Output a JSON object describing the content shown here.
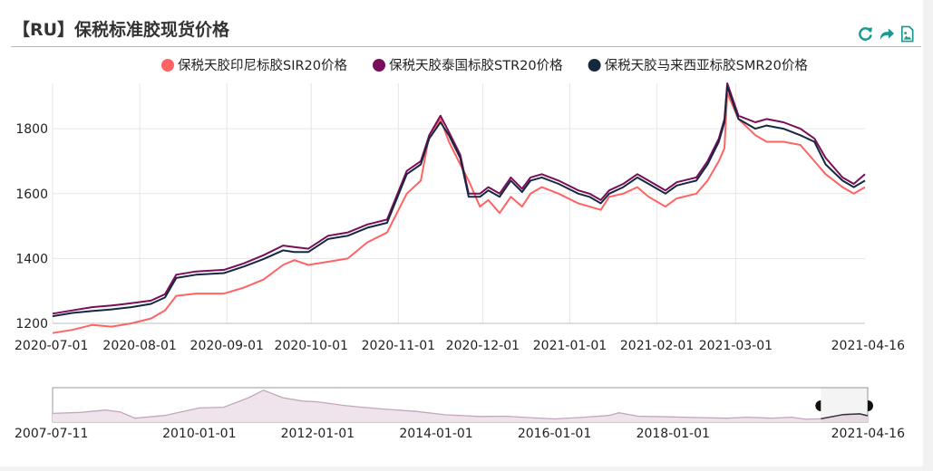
{
  "title": "【RU】保税标准胶现货价格",
  "toolbar": [
    {
      "name": "refresh-icon"
    },
    {
      "name": "share-icon"
    },
    {
      "name": "save-image-icon"
    }
  ],
  "colors": {
    "sir20": "#ff6363",
    "str20": "#7a0d5b",
    "smr20": "#16283f",
    "toolbar": "#1a9a8c",
    "grid": "#e6e6e6",
    "axis": "#bfbfbf",
    "overview_line": "#c4a6bd",
    "overview_recent": "#333333"
  },
  "chart_data": [
    {
      "type": "line",
      "title": "",
      "legend_position": "top",
      "grid": true,
      "xlim": [
        "2020-07-01",
        "2021-04-16"
      ],
      "ylim": [
        1200,
        1940
      ],
      "y_ticks": [
        1200,
        1400,
        1600,
        1800
      ],
      "x_tick_labels": [
        "2020-07-01",
        "2020-08-01",
        "2020-09-01",
        "2020-10-01",
        "2020-11-01",
        "2020-12-01",
        "2021-01-01",
        "2021-02-01",
        "2021-03-01",
        "2021-04-16"
      ],
      "series": [
        {
          "name": "保税天胶印尼标胶SIR20价格",
          "color_key": "sir20",
          "points": [
            [
              "2020-07-01",
              1170
            ],
            [
              "2020-07-08",
              1180
            ],
            [
              "2020-07-15",
              1195
            ],
            [
              "2020-07-22",
              1190
            ],
            [
              "2020-07-29",
              1200
            ],
            [
              "2020-08-05",
              1215
            ],
            [
              "2020-08-10",
              1240
            ],
            [
              "2020-08-14",
              1285
            ],
            [
              "2020-08-21",
              1292
            ],
            [
              "2020-08-31",
              1292
            ],
            [
              "2020-09-07",
              1310
            ],
            [
              "2020-09-14",
              1335
            ],
            [
              "2020-09-21",
              1380
            ],
            [
              "2020-09-25",
              1395
            ],
            [
              "2020-09-30",
              1380
            ],
            [
              "2020-10-07",
              1390
            ],
            [
              "2020-10-14",
              1400
            ],
            [
              "2020-10-21",
              1450
            ],
            [
              "2020-10-28",
              1480
            ],
            [
              "2020-11-04",
              1600
            ],
            [
              "2020-11-09",
              1640
            ],
            [
              "2020-11-12",
              1780
            ],
            [
              "2020-11-16",
              1830
            ],
            [
              "2020-11-19",
              1760
            ],
            [
              "2020-11-23",
              1690
            ],
            [
              "2020-11-26",
              1640
            ],
            [
              "2020-11-30",
              1560
            ],
            [
              "2020-12-03",
              1580
            ],
            [
              "2020-12-07",
              1540
            ],
            [
              "2020-12-11",
              1590
            ],
            [
              "2020-12-15",
              1560
            ],
            [
              "2020-12-18",
              1600
            ],
            [
              "2020-12-22",
              1620
            ],
            [
              "2020-12-28",
              1600
            ],
            [
              "2021-01-04",
              1570
            ],
            [
              "2021-01-08",
              1560
            ],
            [
              "2021-01-12",
              1550
            ],
            [
              "2021-01-15",
              1590
            ],
            [
              "2021-01-20",
              1600
            ],
            [
              "2021-01-25",
              1620
            ],
            [
              "2021-01-29",
              1590
            ],
            [
              "2021-02-04",
              1560
            ],
            [
              "2021-02-08",
              1585
            ],
            [
              "2021-02-15",
              1600
            ],
            [
              "2021-02-19",
              1640
            ],
            [
              "2021-02-23",
              1700
            ],
            [
              "2021-02-25",
              1740
            ],
            [
              "2021-02-26",
              1910
            ],
            [
              "2021-03-02",
              1830
            ],
            [
              "2021-03-08",
              1780
            ],
            [
              "2021-03-12",
              1760
            ],
            [
              "2021-03-18",
              1760
            ],
            [
              "2021-03-24",
              1750
            ],
            [
              "2021-03-29",
              1700
            ],
            [
              "2021-04-02",
              1660
            ],
            [
              "2021-04-08",
              1620
            ],
            [
              "2021-04-12",
              1600
            ],
            [
              "2021-04-16",
              1620
            ]
          ]
        },
        {
          "name": "保税天胶泰国标胶STR20价格",
          "color_key": "str20",
          "points": [
            [
              "2020-07-01",
              1230
            ],
            [
              "2020-07-08",
              1240
            ],
            [
              "2020-07-15",
              1250
            ],
            [
              "2020-07-22",
              1255
            ],
            [
              "2020-07-29",
              1262
            ],
            [
              "2020-08-05",
              1270
            ],
            [
              "2020-08-10",
              1290
            ],
            [
              "2020-08-14",
              1350
            ],
            [
              "2020-08-21",
              1360
            ],
            [
              "2020-08-31",
              1365
            ],
            [
              "2020-09-07",
              1385
            ],
            [
              "2020-09-14",
              1410
            ],
            [
              "2020-09-21",
              1440
            ],
            [
              "2020-09-25",
              1435
            ],
            [
              "2020-09-30",
              1430
            ],
            [
              "2020-10-07",
              1470
            ],
            [
              "2020-10-14",
              1480
            ],
            [
              "2020-10-21",
              1505
            ],
            [
              "2020-10-28",
              1520
            ],
            [
              "2020-11-04",
              1670
            ],
            [
              "2020-11-09",
              1700
            ],
            [
              "2020-11-12",
              1780
            ],
            [
              "2020-11-16",
              1840
            ],
            [
              "2020-11-19",
              1790
            ],
            [
              "2020-11-23",
              1720
            ],
            [
              "2020-11-26",
              1600
            ],
            [
              "2020-11-30",
              1600
            ],
            [
              "2020-12-03",
              1620
            ],
            [
              "2020-12-07",
              1600
            ],
            [
              "2020-12-11",
              1650
            ],
            [
              "2020-12-15",
              1615
            ],
            [
              "2020-12-18",
              1650
            ],
            [
              "2020-12-22",
              1660
            ],
            [
              "2020-12-28",
              1640
            ],
            [
              "2021-01-04",
              1610
            ],
            [
              "2021-01-08",
              1600
            ],
            [
              "2021-01-12",
              1580
            ],
            [
              "2021-01-15",
              1610
            ],
            [
              "2021-01-20",
              1630
            ],
            [
              "2021-01-25",
              1660
            ],
            [
              "2021-01-29",
              1640
            ],
            [
              "2021-02-04",
              1610
            ],
            [
              "2021-02-08",
              1635
            ],
            [
              "2021-02-15",
              1650
            ],
            [
              "2021-02-19",
              1700
            ],
            [
              "2021-02-23",
              1770
            ],
            [
              "2021-02-25",
              1830
            ],
            [
              "2021-02-26",
              1940
            ],
            [
              "2021-03-02",
              1840
            ],
            [
              "2021-03-08",
              1820
            ],
            [
              "2021-03-12",
              1830
            ],
            [
              "2021-03-18",
              1820
            ],
            [
              "2021-03-24",
              1800
            ],
            [
              "2021-03-29",
              1770
            ],
            [
              "2021-04-02",
              1710
            ],
            [
              "2021-04-08",
              1650
            ],
            [
              "2021-04-12",
              1630
            ],
            [
              "2021-04-16",
              1660
            ]
          ]
        },
        {
          "name": "保税天胶马来西亚标胶SMR20价格",
          "color_key": "smr20",
          "points": [
            [
              "2020-07-01",
              1222
            ],
            [
              "2020-07-08",
              1232
            ],
            [
              "2020-07-15",
              1238
            ],
            [
              "2020-07-22",
              1243
            ],
            [
              "2020-07-29",
              1250
            ],
            [
              "2020-08-05",
              1260
            ],
            [
              "2020-08-10",
              1280
            ],
            [
              "2020-08-14",
              1340
            ],
            [
              "2020-08-21",
              1350
            ],
            [
              "2020-08-31",
              1355
            ],
            [
              "2020-09-07",
              1375
            ],
            [
              "2020-09-14",
              1398
            ],
            [
              "2020-09-21",
              1425
            ],
            [
              "2020-09-25",
              1420
            ],
            [
              "2020-09-30",
              1420
            ],
            [
              "2020-10-07",
              1460
            ],
            [
              "2020-10-14",
              1470
            ],
            [
              "2020-10-21",
              1495
            ],
            [
              "2020-10-28",
              1510
            ],
            [
              "2020-11-04",
              1660
            ],
            [
              "2020-11-09",
              1690
            ],
            [
              "2020-11-12",
              1770
            ],
            [
              "2020-11-16",
              1820
            ],
            [
              "2020-11-19",
              1780
            ],
            [
              "2020-11-23",
              1710
            ],
            [
              "2020-11-26",
              1590
            ],
            [
              "2020-11-30",
              1590
            ],
            [
              "2020-12-03",
              1610
            ],
            [
              "2020-12-07",
              1590
            ],
            [
              "2020-12-11",
              1640
            ],
            [
              "2020-12-15",
              1605
            ],
            [
              "2020-12-18",
              1640
            ],
            [
              "2020-12-22",
              1650
            ],
            [
              "2020-12-28",
              1630
            ],
            [
              "2021-01-04",
              1600
            ],
            [
              "2021-01-08",
              1590
            ],
            [
              "2021-01-12",
              1570
            ],
            [
              "2021-01-15",
              1600
            ],
            [
              "2021-01-20",
              1620
            ],
            [
              "2021-01-25",
              1650
            ],
            [
              "2021-01-29",
              1630
            ],
            [
              "2021-02-04",
              1600
            ],
            [
              "2021-02-08",
              1625
            ],
            [
              "2021-02-15",
              1640
            ],
            [
              "2021-02-19",
              1690
            ],
            [
              "2021-02-23",
              1760
            ],
            [
              "2021-02-25",
              1820
            ],
            [
              "2021-02-26",
              1930
            ],
            [
              "2021-03-02",
              1830
            ],
            [
              "2021-03-08",
              1800
            ],
            [
              "2021-03-12",
              1810
            ],
            [
              "2021-03-18",
              1800
            ],
            [
              "2021-03-24",
              1780
            ],
            [
              "2021-03-29",
              1760
            ],
            [
              "2021-04-02",
              1690
            ],
            [
              "2021-04-08",
              1640
            ],
            [
              "2021-04-12",
              1620
            ],
            [
              "2021-04-16",
              1640
            ]
          ]
        }
      ]
    },
    {
      "type": "area",
      "title": "",
      "grid": false,
      "xlim": [
        "2007-07-11",
        "2021-04-16"
      ],
      "x_tick_labels": [
        "2007-07-11",
        "2010-01-01",
        "2012-01-01",
        "2014-01-01",
        "2016-01-01",
        "2018-01-01",
        "2021-04-16"
      ],
      "selection_range": [
        "2020-07-01",
        "2021-04-16"
      ],
      "series": [
        {
          "color_key": "overview_line",
          "points": [
            [
              "2007-07-11",
              2000
            ],
            [
              "2008-01-01",
              2150
            ],
            [
              "2008-06-01",
              2500
            ],
            [
              "2008-09-01",
              2200
            ],
            [
              "2008-12-01",
              1300
            ],
            [
              "2009-06-01",
              1700
            ],
            [
              "2010-01-01",
              2800
            ],
            [
              "2010-06-01",
              2900
            ],
            [
              "2010-11-01",
              4300
            ],
            [
              "2011-02-01",
              5400
            ],
            [
              "2011-06-01",
              4300
            ],
            [
              "2011-10-01",
              3800
            ],
            [
              "2012-01-01",
              3700
            ],
            [
              "2012-06-01",
              3200
            ],
            [
              "2012-10-01",
              2900
            ],
            [
              "2013-03-01",
              2600
            ],
            [
              "2013-09-01",
              2300
            ],
            [
              "2014-03-01",
              1800
            ],
            [
              "2014-10-01",
              1550
            ],
            [
              "2015-03-01",
              1600
            ],
            [
              "2015-09-01",
              1350
            ],
            [
              "2016-01-01",
              1200
            ],
            [
              "2016-06-01",
              1400
            ],
            [
              "2016-12-01",
              1700
            ],
            [
              "2017-02-01",
              2100
            ],
            [
              "2017-06-01",
              1600
            ],
            [
              "2017-12-01",
              1500
            ],
            [
              "2018-06-01",
              1400
            ],
            [
              "2018-12-01",
              1300
            ],
            [
              "2019-04-01",
              1450
            ],
            [
              "2019-09-01",
              1300
            ],
            [
              "2020-01-01",
              1450
            ],
            [
              "2020-04-01",
              1150
            ],
            [
              "2020-07-01",
              1230
            ],
            [
              "2020-11-16",
              1840
            ],
            [
              "2021-02-26",
              1940
            ],
            [
              "2021-04-16",
              1660
            ]
          ]
        }
      ]
    }
  ]
}
